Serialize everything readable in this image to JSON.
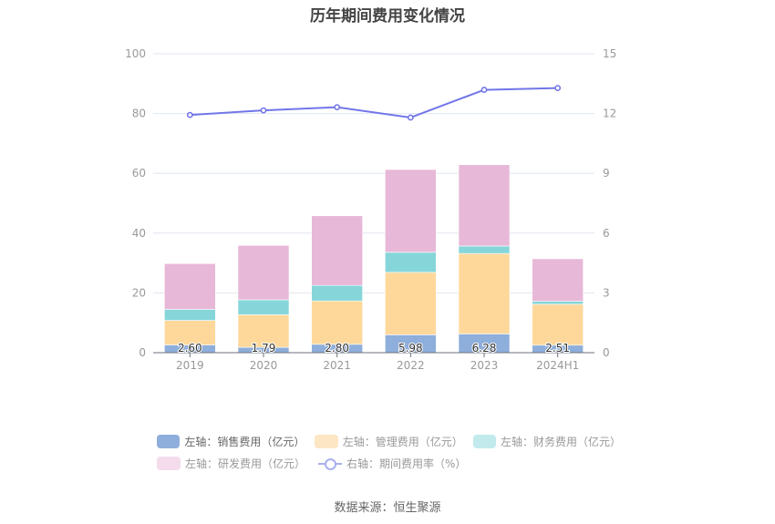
{
  "chart_data": {
    "type": "bar",
    "title": "历年期间费用变化情况",
    "categories": [
      "2019",
      "2020",
      "2021",
      "2022",
      "2023",
      "2024H1"
    ],
    "left_axis": {
      "ylim": [
        0,
        100
      ],
      "ticks": [
        "0",
        "20",
        "40",
        "60",
        "80",
        "100"
      ]
    },
    "right_axis": {
      "ylim": [
        0,
        15
      ],
      "ticks": [
        "0",
        "3",
        "6",
        "9",
        "12",
        "15"
      ]
    },
    "grid": true,
    "stacked": true,
    "series": [
      {
        "name": "左轴：销售费用（亿元）",
        "axis": "left",
        "type": "bar",
        "color": "#8eaedb",
        "values": [
          2.6,
          1.79,
          2.8,
          5.98,
          6.28,
          2.51
        ],
        "labels": [
          "2.60",
          "1.79",
          "2.80",
          "5.98",
          "6.28",
          "2.51"
        ]
      },
      {
        "name": "左轴：管理费用（亿元）",
        "axis": "left",
        "type": "bar",
        "color": "#fed89b",
        "values": [
          8.2,
          10.9,
          14.5,
          20.9,
          26.9,
          13.7
        ]
      },
      {
        "name": "左轴：财务费用（亿元）",
        "axis": "left",
        "type": "bar",
        "color": "#86d6d9",
        "values": [
          3.7,
          5.0,
          5.2,
          6.7,
          2.5,
          1.0
        ]
      },
      {
        "name": "左轴：研发费用（亿元）",
        "axis": "left",
        "type": "bar",
        "color": "#e7b8d8",
        "values": [
          15.3,
          18.2,
          23.3,
          27.7,
          27.2,
          14.2
        ]
      },
      {
        "name": "右轴：期间费用率（%）",
        "axis": "right",
        "type": "line",
        "color": "#7276e8",
        "values": [
          11.93,
          12.16,
          12.32,
          11.8,
          13.19,
          13.28
        ]
      }
    ],
    "legend_position": "bottom"
  },
  "legend": {
    "swatch_colors": [
      "#8eaedb",
      "#fde6c3",
      "#c2eaec",
      "#f4dcec"
    ],
    "items": [
      "左轴：销售费用（亿元）",
      "左轴：管理费用（亿元）",
      "左轴：财务费用（亿元）",
      "左轴：研发费用（亿元）",
      "右轴：期间费用率（%）"
    ]
  },
  "source": "数据来源：恒生聚源"
}
